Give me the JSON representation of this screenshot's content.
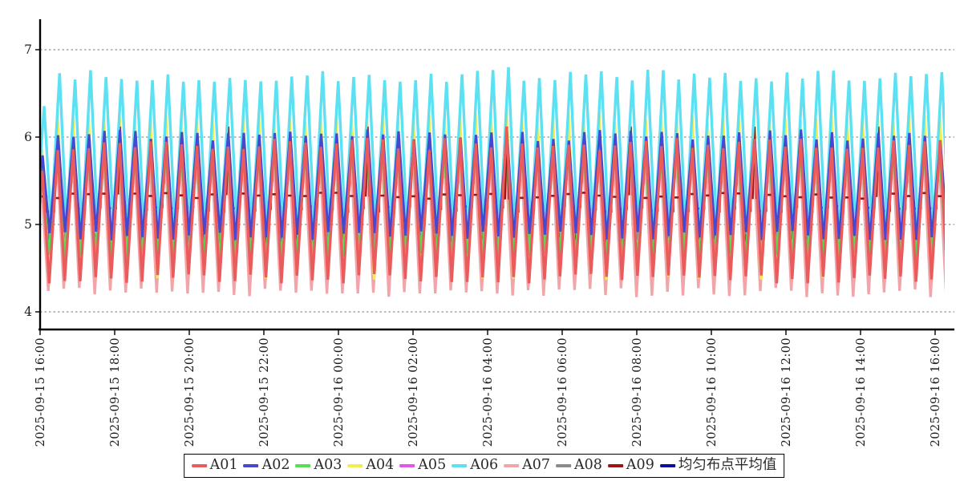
{
  "chart": {
    "title": "",
    "legend_order": [
      "A01",
      "A02",
      "A03",
      "A04",
      "A05",
      "A06",
      "A07",
      "A08",
      "A09",
      "均匀布点平均值"
    ]
  },
  "chart_data": {
    "type": "line",
    "title": "",
    "xlabel": "",
    "ylabel": "",
    "x_tick_labels": [
      "2025-09-15 16:00",
      "2025-09-15 18:00",
      "2025-09-15 20:00",
      "2025-09-15 22:00",
      "2025-09-16 00:00",
      "2025-09-16 02:00",
      "2025-09-16 04:00",
      "2025-09-16 06:00",
      "2025-09-16 08:00",
      "2025-09-16 10:00",
      "2025-09-16 12:00",
      "2025-09-16 14:00",
      "2025-09-16 16:00"
    ],
    "y_ticks": [
      7,
      6,
      5,
      4
    ],
    "ylim": [
      3.75,
      7.4
    ],
    "grid": "horizontal-dashed",
    "legend_position": "bottom-center",
    "wave": {
      "cycles": 59,
      "period_minutes": 24.6,
      "rise_fraction": 0.55,
      "first_peak_scale": 0.8,
      "peak_jitter": 0.07,
      "trough_jitter": 0.055
    },
    "event": {
      "cycle": 30,
      "approx_time": "2025-09-16 04:30",
      "overrides": {
        "A06": 6.8,
        "A04": 6.38,
        "A01": 6.12,
        "A02": 6.05
      }
    },
    "series": [
      {
        "name": "A08",
        "color": "#8b8b8b",
        "min": 4.8,
        "max": 5.72,
        "phase": -0.12,
        "width": 2.4
      },
      {
        "name": "A05",
        "color": "#e257e2",
        "min": 4.5,
        "max": 5.85,
        "phase": -0.14,
        "width": 2.4
      },
      {
        "name": "均匀布点平均值",
        "color": "#0d0d9e",
        "min": 4.68,
        "max": 5.9,
        "phase": -0.13,
        "width": 2.0
      },
      {
        "name": "A07",
        "color": "#f2a4a9",
        "min": 4.22,
        "max": 5.8,
        "phase": -0.18,
        "width": 3.2
      },
      {
        "name": "A04",
        "color": "#f1ee4e",
        "min": 4.42,
        "max": 6.22,
        "phase": -0.13,
        "width": 3.2
      },
      {
        "name": "A03",
        "color": "#57de57",
        "min": 4.62,
        "max": 5.88,
        "phase": -0.15,
        "width": 3.0
      },
      {
        "name": "A09",
        "color": "#9e1414",
        "step": true,
        "base_high": 5.33,
        "base_low": 5.18,
        "spike_value": 6.12,
        "spike_cycles": [
          5,
          12,
          21,
          30,
          38,
          46,
          54
        ],
        "phase": -0.1,
        "width": 2.6
      },
      {
        "name": "A06",
        "color": "#5ce1f2",
        "min": 4.97,
        "max": 6.7,
        "phase": 0.0,
        "width": 3.4
      },
      {
        "name": "A02",
        "color": "#4747cf",
        "min": 4.87,
        "max": 6.02,
        "phase": -0.1,
        "width": 3.0
      },
      {
        "name": "A01",
        "color": "#ea5b5c",
        "min": 4.38,
        "max": 5.92,
        "phase": -0.12,
        "width": 3.3
      }
    ]
  }
}
